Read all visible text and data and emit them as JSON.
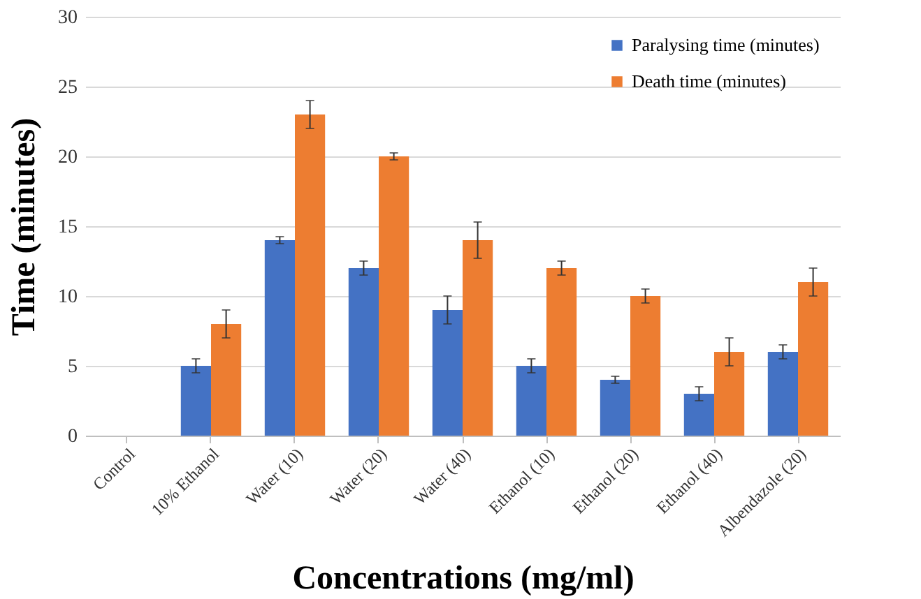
{
  "chart_data": {
    "type": "bar",
    "xlabel": "Concentrations (mg/ml)",
    "ylabel": "Time (minutes)",
    "categories": [
      "Control",
      "10% Ethanol",
      "Water (10)",
      "Water (20)",
      "Water (40)",
      "Ethanol (10)",
      "Ethanol (20)",
      "Ethanol (40)",
      "Albendazole (20)"
    ],
    "series": [
      {
        "name": "Paralysing time (minutes)",
        "color": "#4472c4",
        "values": [
          0,
          5,
          14,
          12,
          9,
          5,
          4,
          3,
          6
        ],
        "errors": [
          null,
          0.5,
          0.25,
          0.5,
          1,
          0.5,
          0.25,
          0.5,
          0.5
        ]
      },
      {
        "name": "Death time (minutes)",
        "color": "#ed7d31",
        "values": [
          0,
          8,
          23,
          20,
          14,
          12,
          10,
          6,
          11
        ],
        "errors": [
          null,
          1,
          1,
          0.25,
          1.3,
          0.5,
          0.5,
          1,
          1
        ]
      }
    ],
    "ylim": [
      0,
      30
    ],
    "yticks": [
      0,
      5,
      10,
      15,
      20,
      25,
      30
    ],
    "grid": "y",
    "legend": "top right"
  }
}
